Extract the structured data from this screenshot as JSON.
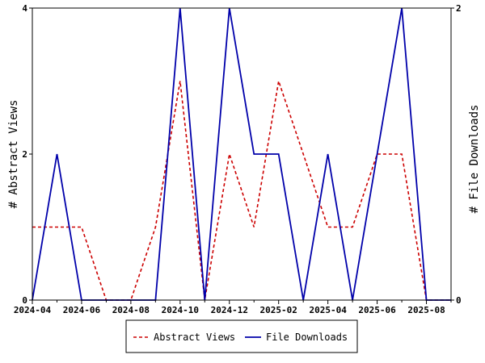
{
  "chart_data": {
    "type": "line",
    "categories": [
      "2024-04",
      "2024-05",
      "2024-06",
      "2024-07",
      "2024-08",
      "2024-09",
      "2024-10",
      "2024-11",
      "2024-12",
      "2025-01",
      "2025-02",
      "2025-03",
      "2025-04",
      "2025-05",
      "2025-06",
      "2025-07",
      "2025-08",
      "2025-09"
    ],
    "x_tick_labels": [
      "2024-04",
      "2024-06",
      "2024-08",
      "2024-10",
      "2024-12",
      "2025-02",
      "2025-04",
      "2025-06",
      "2025-08"
    ],
    "ylabel_left": "# Abstract Views",
    "ylabel_right": "# File Downloads",
    "ylim_left": [
      0,
      4
    ],
    "ylim_right": [
      0,
      2
    ],
    "yticks_left": [
      0,
      2,
      4
    ],
    "yticks_right": [
      0,
      2
    ],
    "grid": false,
    "legend_position": "bottom",
    "series": [
      {
        "name": "Abstract Views",
        "axis": "left",
        "color": "#cc0000",
        "style": "dashed",
        "values": [
          1,
          1,
          1,
          0,
          0,
          1,
          3,
          0,
          2,
          1,
          3,
          2,
          1,
          1,
          2,
          2,
          0,
          0
        ]
      },
      {
        "name": "File Downloads",
        "axis": "right",
        "color": "#0000aa",
        "style": "solid",
        "values": [
          0,
          1,
          0,
          0,
          0,
          0,
          2,
          0,
          2,
          1,
          1,
          0,
          1,
          0,
          1,
          2,
          0,
          0
        ]
      }
    ]
  }
}
